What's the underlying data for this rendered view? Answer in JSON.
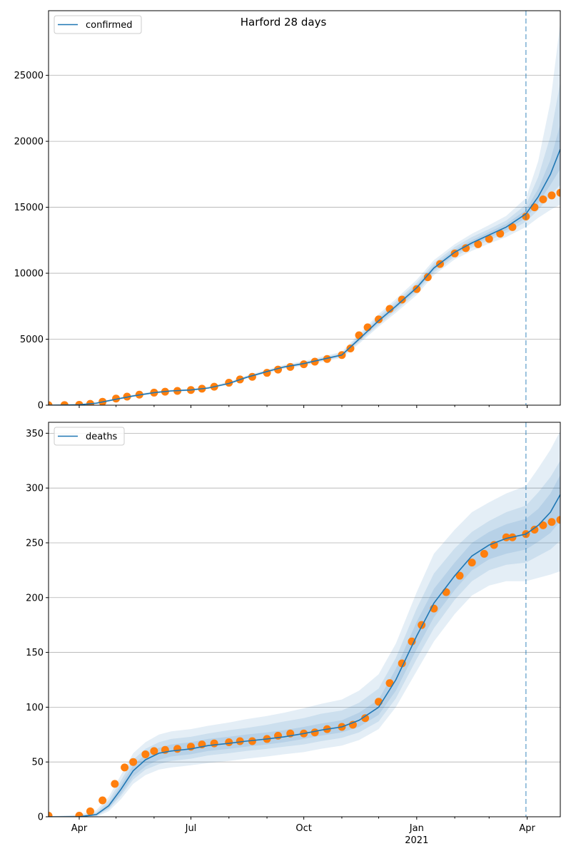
{
  "figure": {
    "title": "Harford 28 days"
  },
  "colors": {
    "model_line": "#1f77b4",
    "observed": "#ff7f0e",
    "band": "#1f77b4",
    "grid": "#b0b0b0",
    "forecast_start_line": "#1f77b4"
  },
  "x_axis": {
    "start": "2020-03-07",
    "end": "2021-04-28",
    "major_ticks": [
      {
        "date": "2020-04-01",
        "label": "Apr",
        "sublabel": ""
      },
      {
        "date": "2020-07-01",
        "label": "Jul",
        "sublabel": ""
      },
      {
        "date": "2020-10-01",
        "label": "Oct",
        "sublabel": ""
      },
      {
        "date": "2021-01-01",
        "label": "Jan",
        "sublabel": "2021"
      },
      {
        "date": "2021-04-01",
        "label": "Apr",
        "sublabel": ""
      }
    ],
    "minor_ticks": [
      "2020-05-01",
      "2020-06-01",
      "2020-08-01",
      "2020-09-01",
      "2020-11-01",
      "2020-12-01",
      "2021-02-01",
      "2021-03-01"
    ],
    "forecast_start": "2021-03-31"
  },
  "chart_data": [
    {
      "type": "line",
      "legend": "confirmed",
      "legend_position": "upper-left",
      "grid": "y",
      "ylim": [
        0,
        29900
      ],
      "yticks": [
        0,
        5000,
        10000,
        15000,
        20000,
        25000
      ],
      "model_fit": {
        "dates": [
          "2020-03-07",
          "2020-03-20",
          "2020-04-01",
          "2020-04-15",
          "2020-05-01",
          "2020-05-15",
          "2020-06-01",
          "2020-06-15",
          "2020-07-01",
          "2020-07-15",
          "2020-08-01",
          "2020-08-15",
          "2020-09-01",
          "2020-09-15",
          "2020-10-01",
          "2020-10-15",
          "2020-11-01",
          "2020-11-15",
          "2020-12-01",
          "2020-12-15",
          "2021-01-01",
          "2021-01-15",
          "2021-02-01",
          "2021-02-15",
          "2021-03-01",
          "2021-03-15",
          "2021-03-31",
          "2021-04-10",
          "2021-04-20",
          "2021-04-28"
        ],
        "values": [
          0,
          10,
          30,
          150,
          450,
          700,
          950,
          1080,
          1150,
          1300,
          1650,
          2100,
          2550,
          2900,
          3150,
          3450,
          3800,
          5000,
          6400,
          7500,
          8900,
          10400,
          11600,
          12300,
          12900,
          13500,
          14500,
          15800,
          17500,
          19400
        ],
        "bands": [
          {
            "lower": [
              0,
              0,
              10,
              100,
              380,
              620,
              870,
              1000,
              1080,
              1220,
              1560,
              2000,
              2430,
              2760,
              2990,
              3270,
              3580,
              4650,
              5950,
              7000,
              8350,
              9850,
              11050,
              11700,
              12250,
              12750,
              13500,
              14200,
              14800,
              15200
            ],
            "upper": [
              0,
              20,
              60,
              210,
              540,
              800,
              1050,
              1180,
              1260,
              1420,
              1780,
              2240,
              2700,
              3070,
              3340,
              3660,
              4050,
              5400,
              6900,
              8050,
              9500,
              11000,
              12200,
              13000,
              13650,
              14350,
              15700,
              18500,
              23000,
              29000
            ]
          },
          {
            "lower": [
              0,
              0,
              20,
              120,
              410,
              650,
              900,
              1030,
              1110,
              1250,
              1590,
              2040,
              2480,
              2810,
              3050,
              3340,
              3660,
              4780,
              6100,
              7180,
              8550,
              10050,
              11250,
              11950,
              12500,
              13050,
              13900,
              14800,
              15900,
              16700
            ],
            "upper": [
              0,
              15,
              45,
              180,
              500,
              760,
              1010,
              1140,
              1210,
              1370,
              1720,
              2170,
              2620,
              2990,
              3260,
              3570,
              3950,
              5250,
              6720,
              7850,
              9280,
              10780,
              12000,
              12750,
              13350,
              14000,
              15200,
              17300,
              20400,
              24500
            ]
          },
          {
            "lower": [
              0,
              5,
              25,
              135,
              430,
              675,
              925,
              1055,
              1130,
              1275,
              1620,
              2070,
              2515,
              2855,
              3100,
              3395,
              3730,
              4890,
              6250,
              7340,
              8720,
              10220,
              11420,
              12120,
              12700,
              13270,
              14200,
              15300,
              16700,
              17900
            ],
            "upper": [
              0,
              12,
              38,
              165,
              475,
              730,
              980,
              1110,
              1180,
              1330,
              1690,
              2135,
              2590,
              2950,
              3210,
              3510,
              3870,
              5120,
              6560,
              7670,
              9090,
              10590,
              11790,
              12500,
              13120,
              13740,
              14800,
              16400,
              18600,
              21300
            ]
          }
        ]
      },
      "observed": {
        "dates": [
          "2020-03-07",
          "2020-03-20",
          "2020-04-01",
          "2020-04-10",
          "2020-04-20",
          "2020-05-01",
          "2020-05-10",
          "2020-05-20",
          "2020-06-01",
          "2020-06-10",
          "2020-06-20",
          "2020-07-01",
          "2020-07-10",
          "2020-07-20",
          "2020-08-01",
          "2020-08-10",
          "2020-08-20",
          "2020-09-01",
          "2020-09-10",
          "2020-09-20",
          "2020-10-01",
          "2020-10-10",
          "2020-10-20",
          "2020-11-01",
          "2020-11-08",
          "2020-11-15",
          "2020-11-22",
          "2020-12-01",
          "2020-12-10",
          "2020-12-20",
          "2021-01-01",
          "2021-01-10",
          "2021-01-20",
          "2021-02-01",
          "2021-02-10",
          "2021-02-20",
          "2021-03-01",
          "2021-03-10",
          "2021-03-20",
          "2021-03-31",
          "2021-04-07",
          "2021-04-14",
          "2021-04-21",
          "2021-04-28"
        ],
        "values": [
          0,
          10,
          30,
          100,
          260,
          500,
          650,
          800,
          950,
          1020,
          1080,
          1150,
          1250,
          1400,
          1700,
          1950,
          2150,
          2450,
          2700,
          2900,
          3100,
          3300,
          3500,
          3800,
          4300,
          5300,
          5900,
          6500,
          7300,
          8000,
          8800,
          9700,
          10700,
          11500,
          11900,
          12200,
          12600,
          13000,
          13500,
          14300,
          15000,
          15600,
          15900,
          16100
        ]
      }
    },
    {
      "type": "line",
      "legend": "deaths",
      "legend_position": "upper-left",
      "grid": "y",
      "ylim": [
        0,
        360
      ],
      "yticks": [
        0,
        50,
        100,
        150,
        200,
        250,
        300,
        350
      ],
      "model_fit": {
        "dates": [
          "2020-03-07",
          "2020-04-01",
          "2020-04-15",
          "2020-04-25",
          "2020-05-05",
          "2020-05-15",
          "2020-05-25",
          "2020-06-05",
          "2020-06-15",
          "2020-07-01",
          "2020-07-15",
          "2020-08-01",
          "2020-08-15",
          "2020-09-01",
          "2020-09-15",
          "2020-10-01",
          "2020-10-15",
          "2020-11-01",
          "2020-11-15",
          "2020-12-01",
          "2020-12-15",
          "2021-01-01",
          "2021-01-15",
          "2021-02-01",
          "2021-02-15",
          "2021-03-01",
          "2021-03-15",
          "2021-03-31",
          "2021-04-10",
          "2021-04-20",
          "2021-04-28"
        ],
        "values": [
          0,
          0,
          2,
          10,
          25,
          42,
          52,
          58,
          60,
          62,
          65,
          67,
          69,
          71,
          73,
          76,
          79,
          82,
          88,
          100,
          125,
          165,
          195,
          220,
          238,
          248,
          254,
          258,
          266,
          278,
          294
        ],
        "bands": [
          {
            "lower": [
              0,
              0,
              0,
              5,
              16,
              30,
              38,
              43,
              45,
              47,
              49,
              51,
              53,
              55,
              57,
              59,
              62,
              65,
              70,
              80,
              100,
              133,
              160,
              185,
              202,
              211,
              215,
              215,
              218,
              221,
              224
            ],
            "upper": [
              0,
              2,
              6,
              18,
              38,
              58,
              68,
              75,
              78,
              80,
              83,
              86,
              89,
              92,
              95,
              99,
              103,
              107,
              115,
              130,
              158,
              205,
              240,
              262,
              278,
              287,
              295,
              302,
              318,
              335,
              352
            ]
          },
          {
            "lower": [
              0,
              0,
              1,
              7,
              19,
              34,
              43,
              48,
              51,
              53,
              56,
              58,
              60,
              62,
              64,
              66,
              69,
              72,
              77,
              87,
              108,
              144,
              172,
              198,
              215,
              225,
              230,
              232,
              238,
              244,
              252
            ],
            "upper": [
              0,
              1,
              4,
              15,
              33,
              52,
              62,
              68,
              71,
              73,
              76,
              79,
              81,
              84,
              87,
              90,
              94,
              97,
              104,
              117,
              145,
              190,
              222,
              245,
              260,
              270,
              278,
              284,
              296,
              310,
              325
            ]
          },
          {
            "lower": [
              0,
              0,
              1,
              8,
              21,
              37,
              46,
              52,
              55,
              57,
              60,
              62,
              64,
              66,
              68,
              71,
              74,
              77,
              82,
              93,
              115,
              153,
              182,
              207,
              225,
              235,
              240,
              244,
              251,
              259,
              270
            ],
            "upper": [
              0,
              1,
              3,
              12,
              29,
              47,
              57,
              63,
              66,
              68,
              71,
              73,
              75,
              77,
              79,
              82,
              85,
              88,
              95,
              107,
              135,
              178,
              208,
              232,
              250,
              260,
              267,
              272,
              281,
              295,
              312
            ]
          }
        ]
      },
      "observed": {
        "dates": [
          "2020-03-07",
          "2020-04-01",
          "2020-04-10",
          "2020-04-20",
          "2020-04-30",
          "2020-05-08",
          "2020-05-15",
          "2020-05-25",
          "2020-06-01",
          "2020-06-10",
          "2020-06-20",
          "2020-07-01",
          "2020-07-10",
          "2020-07-20",
          "2020-08-01",
          "2020-08-10",
          "2020-08-20",
          "2020-09-01",
          "2020-09-10",
          "2020-09-20",
          "2020-10-01",
          "2020-10-10",
          "2020-10-20",
          "2020-11-01",
          "2020-11-10",
          "2020-11-20",
          "2020-12-01",
          "2020-12-10",
          "2020-12-20",
          "2020-12-28",
          "2021-01-05",
          "2021-01-15",
          "2021-01-25",
          "2021-02-05",
          "2021-02-15",
          "2021-02-25",
          "2021-03-05",
          "2021-03-15",
          "2021-03-20",
          "2021-03-31",
          "2021-04-07",
          "2021-04-14",
          "2021-04-21",
          "2021-04-28"
        ],
        "values": [
          1,
          1,
          5,
          15,
          30,
          45,
          50,
          57,
          60,
          61,
          62,
          64,
          66,
          67,
          68,
          69,
          69,
          71,
          74,
          76,
          76,
          77,
          80,
          82,
          84,
          90,
          105,
          122,
          140,
          160,
          175,
          190,
          205,
          220,
          232,
          240,
          248,
          255,
          255,
          258,
          262,
          266,
          269,
          271
        ]
      }
    }
  ]
}
